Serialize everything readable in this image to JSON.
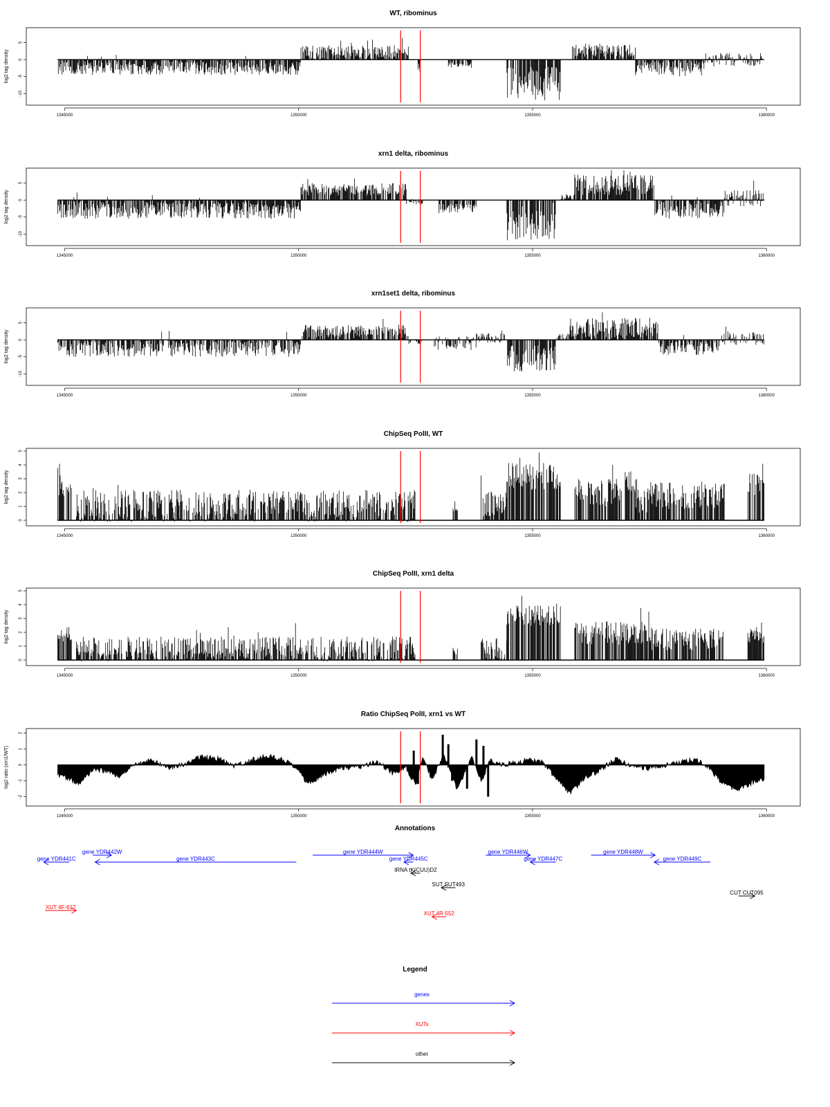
{
  "chart_data": [
    {
      "type": "bar",
      "title": "WT, ribominus",
      "ylabel": "log2 tag density",
      "xlim": [
        1344800,
        1360100
      ],
      "ylim": [
        -13,
        9
      ],
      "yticks": [
        5,
        0,
        -5,
        -10
      ],
      "xticks": [
        1345000,
        1350000,
        1355000,
        1360000
      ],
      "markers": [
        1352180,
        1352600
      ],
      "segments": [
        {
          "from": 1344850,
          "to": 1350050,
          "mean": -2.5,
          "amp": 2.0
        },
        {
          "from": 1350050,
          "to": 1352250,
          "mean": 2.2,
          "amp": 2.0
        },
        {
          "from": 1352250,
          "to": 1352350,
          "mean": 2.5,
          "amp": 1.5
        },
        {
          "from": 1352550,
          "to": 1352600,
          "mean": -3.0,
          "amp": 1.0
        },
        {
          "from": 1353200,
          "to": 1353700,
          "mean": -1.5,
          "amp": 1.0
        },
        {
          "from": 1354450,
          "to": 1355600,
          "mean": -7.0,
          "amp": 5.0
        },
        {
          "from": 1355850,
          "to": 1357200,
          "mean": 2.8,
          "amp": 2.0
        },
        {
          "from": 1357200,
          "to": 1358700,
          "mean": -2.5,
          "amp": 2.5
        },
        {
          "from": 1358700,
          "to": 1359900,
          "mean": 0.0,
          "amp": 2.0
        }
      ]
    },
    {
      "type": "bar",
      "title": "xrn1 delta, ribominus",
      "ylabel": "log2 tag density",
      "xlim": [
        1344800,
        1360100
      ],
      "ylim": [
        -13,
        9
      ],
      "yticks": [
        5,
        0,
        -5,
        -10
      ],
      "xticks": [
        1345000,
        1350000,
        1355000,
        1360000
      ],
      "markers": [
        1352180,
        1352600
      ],
      "segments": [
        {
          "from": 1344850,
          "to": 1350050,
          "mean": -3.0,
          "amp": 2.5
        },
        {
          "from": 1350050,
          "to": 1352300,
          "mean": 3.2,
          "amp": 1.8
        },
        {
          "from": 1352300,
          "to": 1352650,
          "mean": -0.5,
          "amp": 0.8
        },
        {
          "from": 1353000,
          "to": 1353800,
          "mean": -2.5,
          "amp": 1.5
        },
        {
          "from": 1354450,
          "to": 1355500,
          "mean": -7.5,
          "amp": 4.5
        },
        {
          "from": 1355600,
          "to": 1355900,
          "mean": 1.0,
          "amp": 1.0
        },
        {
          "from": 1355900,
          "to": 1357600,
          "mean": 4.5,
          "amp": 3.0
        },
        {
          "from": 1357600,
          "to": 1359100,
          "mean": -3.0,
          "amp": 2.5
        },
        {
          "from": 1359100,
          "to": 1359950,
          "mean": 0.5,
          "amp": 2.5
        }
      ]
    },
    {
      "type": "bar",
      "title": "xrn1set1 delta, ribominus",
      "ylabel": "log2 tag density",
      "xlim": [
        1344800,
        1360100
      ],
      "ylim": [
        -13,
        9
      ],
      "yticks": [
        5,
        0,
        -5,
        -10
      ],
      "xticks": [
        1345000,
        1350000,
        1355000,
        1360000
      ],
      "markers": [
        1352180,
        1352600
      ],
      "segments": [
        {
          "from": 1344850,
          "to": 1350050,
          "mean": -2.5,
          "amp": 2.5
        },
        {
          "from": 1350050,
          "to": 1352300,
          "mean": 2.5,
          "amp": 2.0
        },
        {
          "from": 1352300,
          "to": 1352650,
          "mean": -0.5,
          "amp": 0.8
        },
        {
          "from": 1352900,
          "to": 1353800,
          "mean": -1.0,
          "amp": 2.0
        },
        {
          "from": 1353800,
          "to": 1354400,
          "mean": 0.5,
          "amp": 1.5
        },
        {
          "from": 1354450,
          "to": 1355500,
          "mean": -5.5,
          "amp": 4.0
        },
        {
          "from": 1355500,
          "to": 1355800,
          "mean": 1.0,
          "amp": 1.0
        },
        {
          "from": 1355800,
          "to": 1357700,
          "mean": 3.5,
          "amp": 3.0
        },
        {
          "from": 1357700,
          "to": 1359000,
          "mean": -2.5,
          "amp": 2.0
        },
        {
          "from": 1359000,
          "to": 1359950,
          "mean": 0.5,
          "amp": 2.0
        }
      ]
    },
    {
      "type": "bar",
      "title": "ChipSeq PolII, WT",
      "ylabel": "log2 tag density",
      "xlim": [
        1344800,
        1360100
      ],
      "ylim": [
        -0.3,
        5.1
      ],
      "yticks": [
        0,
        1,
        2,
        3,
        4,
        5
      ],
      "xticks": [
        1345000,
        1350000,
        1355000,
        1360000
      ],
      "markers": [
        1352180,
        1352600
      ],
      "segments": [
        {
          "from": 1344850,
          "to": 1345150,
          "mean": 2.5,
          "amp": 0.8
        },
        {
          "from": 1345250,
          "to": 1352500,
          "mean": 1.0,
          "amp": 1.2
        },
        {
          "from": 1353300,
          "to": 1353400,
          "mean": 1.0,
          "amp": 0.5
        },
        {
          "from": 1353900,
          "to": 1354450,
          "mean": 1.2,
          "amp": 1.0
        },
        {
          "from": 1354450,
          "to": 1355600,
          "mean": 3.2,
          "amp": 1.0
        },
        {
          "from": 1355900,
          "to": 1356900,
          "mean": 2.0,
          "amp": 1.0
        },
        {
          "from": 1356900,
          "to": 1357200,
          "mean": 2.8,
          "amp": 0.8
        },
        {
          "from": 1357200,
          "to": 1357500,
          "mean": 1.5,
          "amp": 1.0
        },
        {
          "from": 1357500,
          "to": 1359100,
          "mean": 1.8,
          "amp": 1.0
        },
        {
          "from": 1359600,
          "to": 1359950,
          "mean": 2.6,
          "amp": 0.8
        }
      ]
    },
    {
      "type": "bar",
      "title": "ChipSeq PolII, xrn1 delta",
      "ylabel": "log2 tag density",
      "xlim": [
        1344800,
        1360100
      ],
      "ylim": [
        -0.3,
        5.1
      ],
      "yticks": [
        0,
        1,
        2,
        3,
        4,
        5
      ],
      "xticks": [
        1345000,
        1350000,
        1355000,
        1360000
      ],
      "markers": [
        1352180,
        1352600
      ],
      "segments": [
        {
          "from": 1344850,
          "to": 1345150,
          "mean": 1.8,
          "amp": 0.6
        },
        {
          "from": 1345250,
          "to": 1352500,
          "mean": 0.8,
          "amp": 0.9
        },
        {
          "from": 1353300,
          "to": 1353400,
          "mean": 0.6,
          "amp": 0.4
        },
        {
          "from": 1353900,
          "to": 1354450,
          "mean": 0.8,
          "amp": 0.8
        },
        {
          "from": 1354450,
          "to": 1355600,
          "mean": 3.2,
          "amp": 0.8
        },
        {
          "from": 1355900,
          "to": 1357500,
          "mean": 2.0,
          "amp": 0.9
        },
        {
          "from": 1357500,
          "to": 1359100,
          "mean": 1.5,
          "amp": 0.8
        },
        {
          "from": 1359600,
          "to": 1359950,
          "mean": 1.8,
          "amp": 0.6
        }
      ]
    },
    {
      "type": "area",
      "title": "Ratio ChipSeq PolII, xrn1 vs WT",
      "ylabel": "log2 ratio (xrn1/WT)",
      "xlim": [
        1344800,
        1360100
      ],
      "ylim": [
        -2.5,
        2.2
      ],
      "yticks": [
        2,
        1,
        0,
        -1,
        -2
      ],
      "xticks": [
        1345000,
        1350000,
        1355000,
        1360000
      ],
      "markers": [
        1352180,
        1352600
      ],
      "profile": [
        [
          1344850,
          -0.6
        ],
        [
          1345100,
          -0.9
        ],
        [
          1345300,
          -1.2
        ],
        [
          1345600,
          -0.3
        ],
        [
          1345900,
          -0.4
        ],
        [
          1346200,
          -0.8
        ],
        [
          1346500,
          0.1
        ],
        [
          1346900,
          0.3
        ],
        [
          1347200,
          -0.2
        ],
        [
          1347600,
          0.1
        ],
        [
          1347900,
          0.5
        ],
        [
          1348300,
          0.4
        ],
        [
          1348600,
          -0.1
        ],
        [
          1348900,
          0.2
        ],
        [
          1349300,
          0.6
        ],
        [
          1349700,
          0.3
        ],
        [
          1350000,
          -0.4
        ],
        [
          1350200,
          -1.2
        ],
        [
          1350600,
          -0.5
        ],
        [
          1350900,
          -0.2
        ],
        [
          1351300,
          -0.1
        ],
        [
          1351700,
          0.2
        ],
        [
          1352000,
          -0.5
        ],
        [
          1352300,
          -0.2
        ],
        [
          1352500,
          -1.3
        ],
        [
          1352650,
          0.4
        ],
        [
          1352850,
          -0.9
        ],
        [
          1353100,
          0.6
        ],
        [
          1353400,
          -1.6
        ],
        [
          1353700,
          0.5
        ],
        [
          1353900,
          -1.0
        ],
        [
          1354100,
          0.3
        ],
        [
          1354300,
          0.0
        ],
        [
          1354600,
          0.1
        ],
        [
          1354900,
          0.3
        ],
        [
          1355200,
          0.2
        ],
        [
          1355500,
          -0.8
        ],
        [
          1355800,
          -1.8
        ],
        [
          1356100,
          -0.9
        ],
        [
          1356500,
          -0.2
        ],
        [
          1356800,
          0.4
        ],
        [
          1357100,
          -0.1
        ],
        [
          1357500,
          -0.2
        ],
        [
          1357900,
          0.0
        ],
        [
          1358200,
          0.2
        ],
        [
          1358500,
          0.4
        ],
        [
          1358800,
          -0.3
        ],
        [
          1359100,
          -1.3
        ],
        [
          1359400,
          -1.6
        ],
        [
          1359700,
          -1.1
        ],
        [
          1359950,
          -0.9
        ]
      ],
      "spikes": [
        {
          "x": 1353080,
          "y": 1.9
        },
        {
          "x": 1353200,
          "y": 1.3
        },
        {
          "x": 1353280,
          "y": -1.0
        },
        {
          "x": 1353600,
          "y": -1.5
        },
        {
          "x": 1353800,
          "y": 1.6
        },
        {
          "x": 1353950,
          "y": 1.2
        },
        {
          "x": 1354050,
          "y": -2.0
        },
        {
          "x": 1352460,
          "y": 0.9
        },
        {
          "x": 1352550,
          "y": -1.2
        }
      ]
    }
  ],
  "annotations": {
    "title": "Annotations",
    "items": [
      {
        "label": "gene YDR441C",
        "from": 1345100,
        "to": 1344550,
        "row": 1,
        "kind": "gene"
      },
      {
        "label": "gene YDR442W",
        "from": 1345600,
        "to": 1346000,
        "row": 0,
        "kind": "gene"
      },
      {
        "label": "gene YDR443C",
        "from": 1349950,
        "to": 1345650,
        "row": 1,
        "kind": "gene"
      },
      {
        "label": "gene YDR444W",
        "from": 1350300,
        "to": 1352450,
        "row": 0,
        "kind": "gene"
      },
      {
        "label": "gene YDR445C",
        "from": 1352450,
        "to": 1352250,
        "row": 1,
        "kind": "gene"
      },
      {
        "label": "tRNA tK(CUU)D2",
        "from": 1352600,
        "to": 1352400,
        "row": 2,
        "kind": "other"
      },
      {
        "label": "gene YDR446W",
        "from": 1354000,
        "to": 1354950,
        "row": 0,
        "kind": "gene"
      },
      {
        "label": "gene YDR447C",
        "from": 1355500,
        "to": 1354950,
        "row": 1,
        "kind": "gene"
      },
      {
        "label": "gene YDR448W",
        "from": 1356250,
        "to": 1357620,
        "row": 0,
        "kind": "gene"
      },
      {
        "label": "gene YDR449C",
        "from": 1358800,
        "to": 1357600,
        "row": 1,
        "kind": "gene"
      },
      {
        "label": "SUT SUT493",
        "from": 1353350,
        "to": 1353050,
        "row": 3,
        "kind": "other"
      },
      {
        "label": "CUT CUT095",
        "from": 1359400,
        "to": 1359750,
        "row": 4,
        "kind": "other"
      },
      {
        "label": "XUT 4F-617",
        "from": 1344580,
        "to": 1345250,
        "row": 5,
        "kind": "xut"
      },
      {
        "label": "XUT 4R-552",
        "from": 1353150,
        "to": 1352850,
        "row": 6,
        "kind": "xut"
      }
    ]
  },
  "legend": {
    "title": "Legend",
    "entries": [
      {
        "label": "genes",
        "kind": "gene"
      },
      {
        "label": "XUTs",
        "kind": "xut"
      },
      {
        "label": "other",
        "kind": "other"
      }
    ]
  },
  "colors": {
    "gene": "#0000ff",
    "xut": "#ff0000",
    "other": "#000000",
    "marker": "#ff0000"
  }
}
